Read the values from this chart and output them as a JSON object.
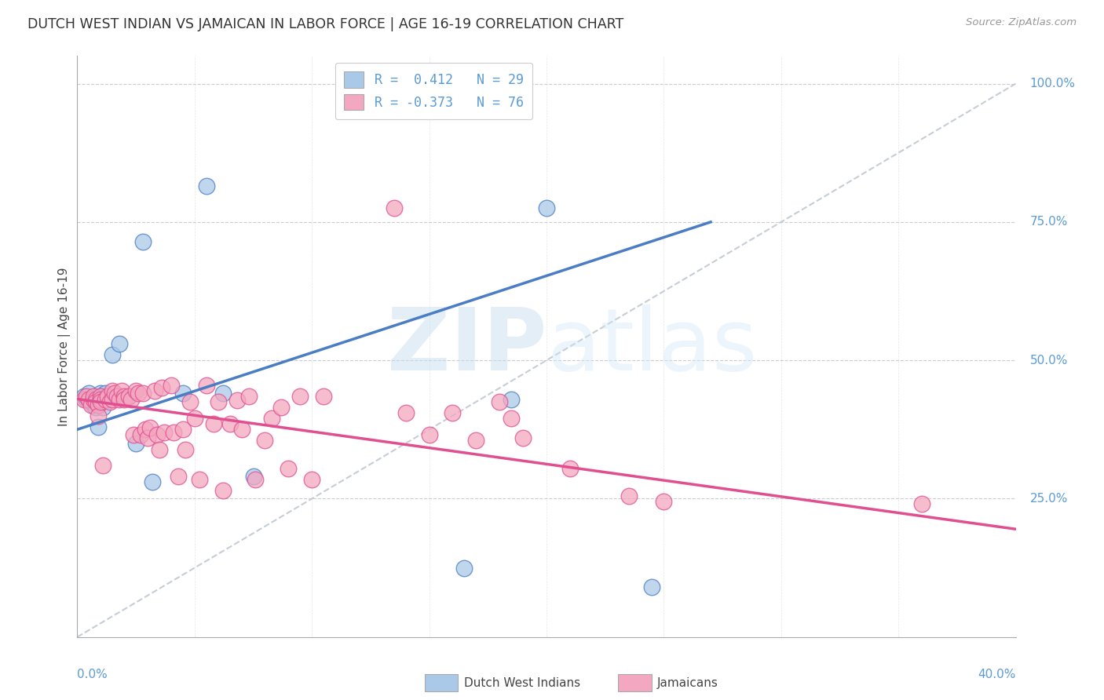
{
  "title": "DUTCH WEST INDIAN VS JAMAICAN IN LABOR FORCE | AGE 16-19 CORRELATION CHART",
  "source": "Source: ZipAtlas.com",
  "ylabel": "In Labor Force | Age 16-19",
  "xlim": [
    0.0,
    0.4
  ],
  "ylim": [
    0.0,
    1.05
  ],
  "xticks": [
    0.0,
    0.05,
    0.1,
    0.15,
    0.2,
    0.25,
    0.3,
    0.35,
    0.4
  ],
  "ytick_positions": [
    0.25,
    0.5,
    0.75,
    1.0
  ],
  "ytick_labels": [
    "25.0%",
    "50.0%",
    "75.0%",
    "100.0%"
  ],
  "blue_color": "#aac9e8",
  "pink_color": "#f4a7c0",
  "blue_line_color": "#4a7dc4",
  "pink_line_color": "#e05090",
  "dashed_line_color": "#c0c8d0",
  "legend_label_blue": "Dutch West Indians",
  "legend_label_pink": "Jamaicans",
  "blue_points_x": [
    0.003,
    0.004,
    0.005,
    0.006,
    0.007,
    0.007,
    0.008,
    0.009,
    0.009,
    0.01,
    0.01,
    0.011,
    0.012,
    0.013,
    0.015,
    0.017,
    0.018,
    0.022,
    0.025,
    0.028,
    0.032,
    0.045,
    0.055,
    0.062,
    0.075,
    0.165,
    0.185,
    0.2,
    0.245
  ],
  "blue_points_y": [
    0.435,
    0.43,
    0.44,
    0.425,
    0.43,
    0.42,
    0.415,
    0.43,
    0.38,
    0.44,
    0.435,
    0.415,
    0.44,
    0.43,
    0.51,
    0.435,
    0.53,
    0.435,
    0.35,
    0.715,
    0.28,
    0.44,
    0.815,
    0.44,
    0.29,
    0.125,
    0.43,
    0.775,
    0.09
  ],
  "pink_points_x": [
    0.003,
    0.004,
    0.005,
    0.006,
    0.007,
    0.007,
    0.008,
    0.008,
    0.009,
    0.009,
    0.01,
    0.01,
    0.01,
    0.011,
    0.012,
    0.013,
    0.014,
    0.015,
    0.015,
    0.016,
    0.017,
    0.018,
    0.019,
    0.02,
    0.02,
    0.022,
    0.023,
    0.024,
    0.025,
    0.026,
    0.027,
    0.028,
    0.029,
    0.03,
    0.031,
    0.033,
    0.034,
    0.035,
    0.036,
    0.037,
    0.04,
    0.041,
    0.043,
    0.045,
    0.046,
    0.048,
    0.05,
    0.052,
    0.055,
    0.058,
    0.06,
    0.062,
    0.065,
    0.068,
    0.07,
    0.073,
    0.076,
    0.08,
    0.083,
    0.087,
    0.09,
    0.095,
    0.1,
    0.105,
    0.135,
    0.14,
    0.15,
    0.16,
    0.17,
    0.18,
    0.185,
    0.19,
    0.21,
    0.235,
    0.25,
    0.36
  ],
  "pink_points_y": [
    0.43,
    0.435,
    0.43,
    0.42,
    0.43,
    0.435,
    0.43,
    0.425,
    0.42,
    0.4,
    0.435,
    0.43,
    0.425,
    0.31,
    0.43,
    0.435,
    0.425,
    0.445,
    0.43,
    0.44,
    0.435,
    0.43,
    0.445,
    0.435,
    0.43,
    0.435,
    0.43,
    0.365,
    0.445,
    0.44,
    0.365,
    0.44,
    0.375,
    0.36,
    0.378,
    0.445,
    0.365,
    0.338,
    0.45,
    0.37,
    0.455,
    0.37,
    0.29,
    0.375,
    0.338,
    0.425,
    0.395,
    0.285,
    0.455,
    0.385,
    0.425,
    0.265,
    0.385,
    0.428,
    0.375,
    0.435,
    0.285,
    0.355,
    0.395,
    0.415,
    0.305,
    0.435,
    0.285,
    0.435,
    0.775,
    0.405,
    0.365,
    0.405,
    0.355,
    0.425,
    0.395,
    0.36,
    0.305,
    0.255,
    0.245,
    0.24
  ],
  "blue_trend_x": [
    0.0,
    0.27
  ],
  "blue_trend_y": [
    0.375,
    0.75
  ],
  "pink_trend_x": [
    0.0,
    0.4
  ],
  "pink_trend_y": [
    0.43,
    0.195
  ],
  "diag_line_x": [
    0.0,
    0.4
  ],
  "diag_line_y": [
    0.0,
    1.0
  ],
  "watermark_zip": "ZIP",
  "watermark_atlas": "atlas",
  "background_color": "#ffffff",
  "grid_color": "#cccccc"
}
